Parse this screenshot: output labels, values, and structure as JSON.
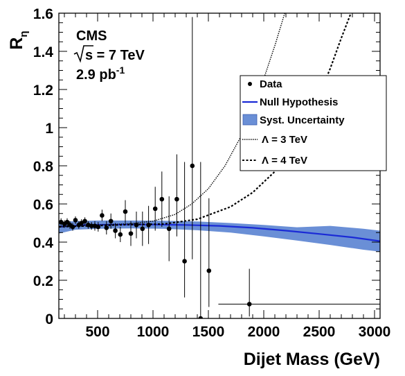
{
  "chart_data": {
    "type": "scatter",
    "xlabel": "Dijet Mass (GeV)",
    "ylabel": "R",
    "ylabel_sub": "η",
    "xlim": [
      150,
      3050
    ],
    "ylim": [
      0,
      1.6
    ],
    "x_ticks": [
      500,
      1000,
      1500,
      2000,
      2500,
      3000
    ],
    "x_tick_labels": [
      "500",
      "1000",
      "1500",
      "2000",
      "2500",
      "3000"
    ],
    "y_ticks": [
      0,
      0.2,
      0.4,
      0.6,
      0.8,
      1,
      1.2,
      1.4,
      1.6
    ],
    "y_tick_labels": [
      "0",
      "0.2",
      "0.4",
      "0.6",
      "0.8",
      "1",
      "1.2",
      "1.4",
      "1.6"
    ],
    "grid": false,
    "legend_position": "right",
    "annotations": {
      "experiment": "CMS",
      "energy_sqrt": "s",
      "energy_rest": " = 7 TeV",
      "lumi_base": "2.9 pb",
      "lumi_sup": "-1"
    },
    "legend": [
      {
        "key": "data",
        "label": "Data"
      },
      {
        "key": "null",
        "label": "Null Hypothesis"
      },
      {
        "key": "syst",
        "label": "Syst. Uncertainty"
      },
      {
        "key": "l3",
        "label_sym": "Λ",
        "label_rest": " = 3 TeV"
      },
      {
        "key": "l4",
        "label_sym": "Λ",
        "label_rest": " = 4 TeV"
      }
    ],
    "series": [
      {
        "name": "Data",
        "points": [
          {
            "x": 170,
            "y": 0.505,
            "lo": 0.485,
            "hi": 0.525
          },
          {
            "x": 200,
            "y": 0.495,
            "lo": 0.475,
            "hi": 0.515
          },
          {
            "x": 225,
            "y": 0.505,
            "lo": 0.485,
            "hi": 0.525
          },
          {
            "x": 250,
            "y": 0.49,
            "lo": 0.47,
            "hi": 0.51
          },
          {
            "x": 275,
            "y": 0.48,
            "lo": 0.46,
            "hi": 0.5
          },
          {
            "x": 300,
            "y": 0.515,
            "lo": 0.495,
            "hi": 0.535
          },
          {
            "x": 330,
            "y": 0.49,
            "lo": 0.47,
            "hi": 0.51
          },
          {
            "x": 355,
            "y": 0.5,
            "lo": 0.48,
            "hi": 0.52
          },
          {
            "x": 385,
            "y": 0.51,
            "lo": 0.49,
            "hi": 0.53
          },
          {
            "x": 415,
            "y": 0.49,
            "lo": 0.47,
            "hi": 0.51
          },
          {
            "x": 445,
            "y": 0.485,
            "lo": 0.465,
            "hi": 0.505
          },
          {
            "x": 475,
            "y": 0.485,
            "lo": 0.46,
            "hi": 0.51
          },
          {
            "x": 505,
            "y": 0.48,
            "lo": 0.455,
            "hi": 0.505
          },
          {
            "x": 540,
            "y": 0.54,
            "lo": 0.51,
            "hi": 0.57
          },
          {
            "x": 580,
            "y": 0.475,
            "lo": 0.44,
            "hi": 0.51
          },
          {
            "x": 620,
            "y": 0.51,
            "lo": 0.47,
            "hi": 0.55
          },
          {
            "x": 660,
            "y": 0.46,
            "lo": 0.42,
            "hi": 0.5
          },
          {
            "x": 705,
            "y": 0.44,
            "lo": 0.4,
            "hi": 0.48
          },
          {
            "x": 750,
            "y": 0.56,
            "lo": 0.5,
            "hi": 0.62
          },
          {
            "x": 800,
            "y": 0.445,
            "lo": 0.38,
            "hi": 0.51
          },
          {
            "x": 850,
            "y": 0.49,
            "lo": 0.42,
            "hi": 0.56
          },
          {
            "x": 905,
            "y": 0.47,
            "lo": 0.38,
            "hi": 0.56
          },
          {
            "x": 960,
            "y": 0.49,
            "lo": 0.39,
            "hi": 0.59
          },
          {
            "x": 1020,
            "y": 0.575,
            "lo": 0.46,
            "hi": 0.69
          },
          {
            "x": 1080,
            "y": 0.625,
            "lo": 0.48,
            "hi": 0.77
          },
          {
            "x": 1145,
            "y": 0.47,
            "lo": 0.3,
            "hi": 0.64
          },
          {
            "x": 1215,
            "y": 0.625,
            "lo": 0.43,
            "hi": 0.86
          },
          {
            "x": 1285,
            "y": 0.3,
            "lo": 0.11,
            "hi": 0.82
          },
          {
            "x": 1355,
            "y": 0.8,
            "lo": 0.31,
            "hi": 1.58
          },
          {
            "x": 1430,
            "y": 0.0,
            "lo": 0.0,
            "hi": 0.82
          },
          {
            "x": 1505,
            "y": 0.25,
            "lo": 0.06,
            "hi": 0.63
          },
          {
            "x": 1870,
            "y": 0.075,
            "lo": 0.01,
            "hi": 0.26,
            "xlo": 1590,
            "xhi": 3050
          }
        ]
      },
      {
        "name": "Null Hypothesis",
        "x": [
          150,
          400,
          700,
          1000,
          1300,
          1600,
          1900,
          2200,
          2500,
          2800,
          3050
        ],
        "y": [
          0.48,
          0.49,
          0.492,
          0.492,
          0.49,
          0.485,
          0.475,
          0.46,
          0.443,
          0.425,
          0.405
        ]
      },
      {
        "name": "Syst. Uncertainty",
        "x": [
          150,
          300,
          500,
          800,
          1100,
          1400,
          1700,
          2000,
          2300,
          2600,
          2900,
          3050
        ],
        "lo": [
          0.445,
          0.465,
          0.47,
          0.472,
          0.47,
          0.462,
          0.45,
          0.43,
          0.408,
          0.385,
          0.36,
          0.35
        ],
        "hi": [
          0.505,
          0.51,
          0.513,
          0.513,
          0.512,
          0.508,
          0.5,
          0.49,
          0.478,
          0.485,
          0.47,
          0.46
        ]
      },
      {
        "name": "Λ = 3 TeV",
        "x": [
          150,
          500,
          800,
          1000,
          1200,
          1350,
          1500,
          1650,
          1800,
          1950,
          2100,
          2200
        ],
        "y": [
          0.48,
          0.49,
          0.497,
          0.51,
          0.545,
          0.6,
          0.68,
          0.8,
          0.96,
          1.17,
          1.43,
          1.62
        ]
      },
      {
        "name": "Λ = 4 TeV",
        "x": [
          150,
          800,
          1100,
          1400,
          1700,
          1900,
          2100,
          2300,
          2450,
          2600,
          2700,
          2800
        ],
        "y": [
          0.48,
          0.492,
          0.495,
          0.52,
          0.585,
          0.66,
          0.77,
          0.94,
          1.1,
          1.31,
          1.47,
          1.62
        ]
      }
    ]
  }
}
